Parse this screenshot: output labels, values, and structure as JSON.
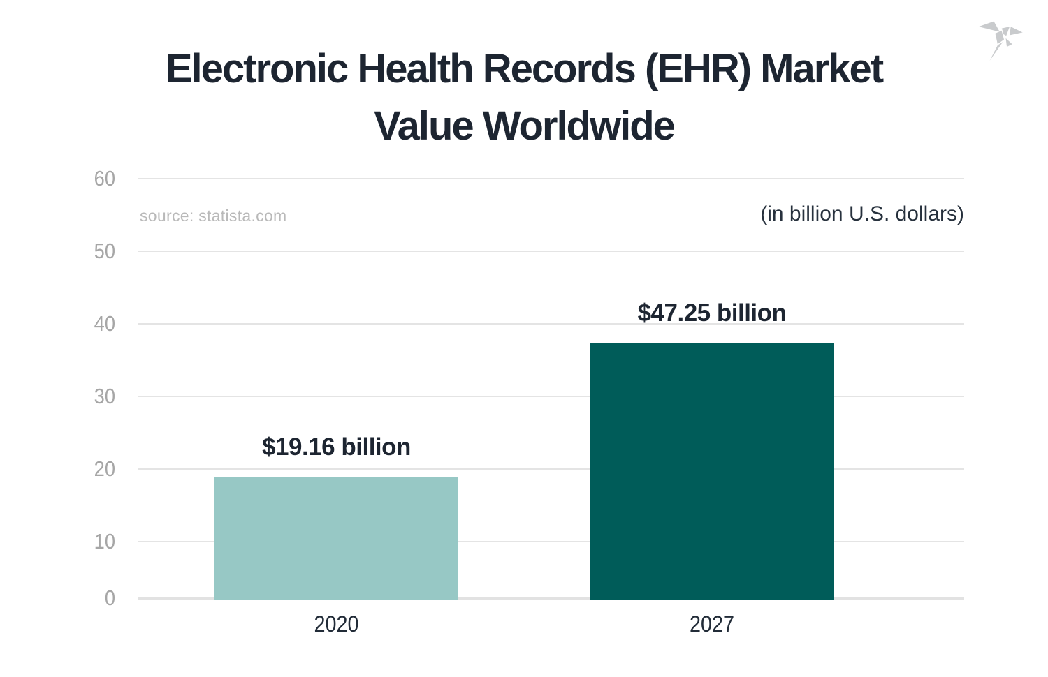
{
  "title": {
    "text": "Electronic Health Records (EHR) Market Value Worldwide",
    "lines": [
      "Electronic Health Records (EHR) Market",
      "Value Worldwide"
    ],
    "color": "#1d2531"
  },
  "logo": {
    "name": "origami-bird-logo",
    "color": "#c9cbcd"
  },
  "source_note": "source: statista.com",
  "unit_note": "(in billion U.S. dollars)",
  "chart_data": {
    "type": "bar",
    "title": "Electronic Health Records (EHR) Market Value Worldwide",
    "unit": "billion U.S. dollars",
    "categories": [
      "2020",
      "2027"
    ],
    "values": [
      19.16,
      47.25
    ],
    "value_labels": [
      "$19.16 billion",
      "$47.25 billion"
    ],
    "bar_colors": [
      "#97c8c5",
      "#005c59"
    ],
    "yticks": [
      60,
      50,
      40,
      30,
      20,
      10,
      0
    ],
    "ylim": [
      0,
      60
    ],
    "grid": true,
    "legend": "none",
    "source": "source: statista.com"
  },
  "colors": {
    "background": "#ffffff",
    "gridline": "#e4e4e4",
    "tick_label": "#a6a6a6",
    "title_text": "#1d2531",
    "bar_light": "#97c8c5",
    "bar_dark": "#005c59"
  }
}
